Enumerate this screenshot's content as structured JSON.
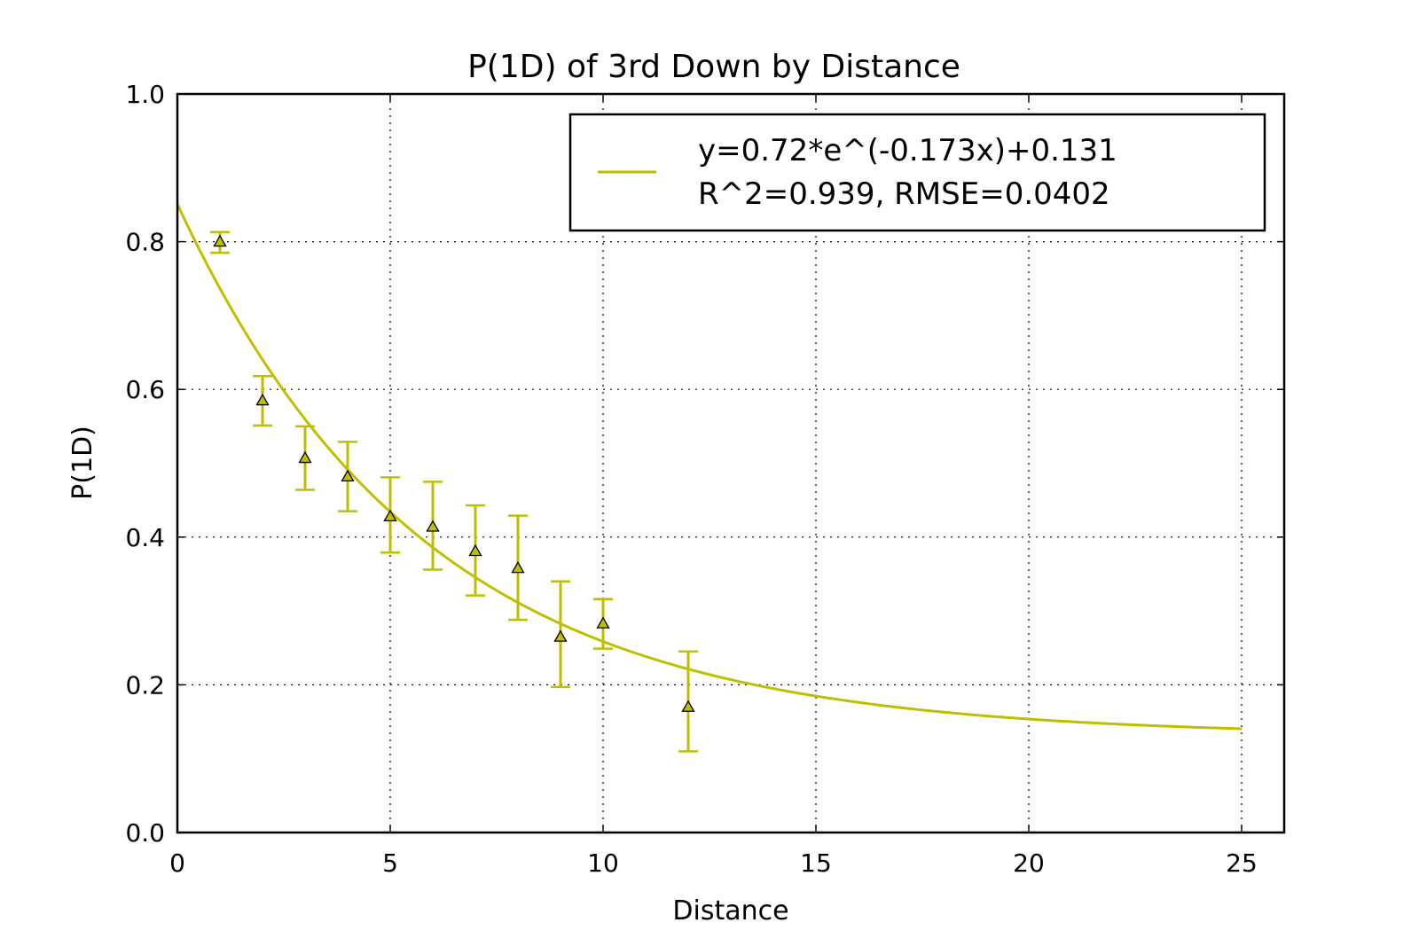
{
  "chart_data": {
    "type": "scatter",
    "title": "P(1D) of 3rd Down by Distance",
    "xlabel": "Distance",
    "ylabel": "P(1D)",
    "xlim": [
      0,
      26
    ],
    "ylim": [
      0.0,
      1.0
    ],
    "xticks": [
      0,
      5,
      10,
      15,
      20,
      25
    ],
    "yticks": [
      0.0,
      0.2,
      0.4,
      0.6,
      0.8,
      1.0
    ],
    "xtick_labels": [
      "0",
      "5",
      "10",
      "15",
      "20",
      "25"
    ],
    "ytick_labels": [
      "0.0",
      "0.2",
      "0.4",
      "0.6",
      "0.8",
      "1.0"
    ],
    "grid": true,
    "legend_position": "upper-right",
    "color": "#bfbf00",
    "points": [
      {
        "x": 1,
        "y": 0.8,
        "err_low": 0.785,
        "err_high": 0.813
      },
      {
        "x": 2,
        "y": 0.585,
        "err_low": 0.551,
        "err_high": 0.618
      },
      {
        "x": 3,
        "y": 0.507,
        "err_low": 0.464,
        "err_high": 0.55
      },
      {
        "x": 4,
        "y": 0.482,
        "err_low": 0.435,
        "err_high": 0.529
      },
      {
        "x": 5,
        "y": 0.428,
        "err_low": 0.379,
        "err_high": 0.481
      },
      {
        "x": 6,
        "y": 0.414,
        "err_low": 0.356,
        "err_high": 0.475
      },
      {
        "x": 7,
        "y": 0.381,
        "err_low": 0.321,
        "err_high": 0.443
      },
      {
        "x": 8,
        "y": 0.358,
        "err_low": 0.288,
        "err_high": 0.429
      },
      {
        "x": 9,
        "y": 0.265,
        "err_low": 0.197,
        "err_high": 0.34
      },
      {
        "x": 10,
        "y": 0.283,
        "err_low": 0.249,
        "err_high": 0.316
      },
      {
        "x": 12,
        "y": 0.17,
        "err_low": 0.11,
        "err_high": 0.245
      }
    ],
    "fit": {
      "a": 0.72,
      "b": -0.173,
      "c": 0.131,
      "x_range": [
        0,
        25
      ],
      "legend_line1": "y=0.72*e^(-0.173x)+0.131",
      "legend_line2": "R^2=0.939, RMSE=0.0402"
    }
  }
}
